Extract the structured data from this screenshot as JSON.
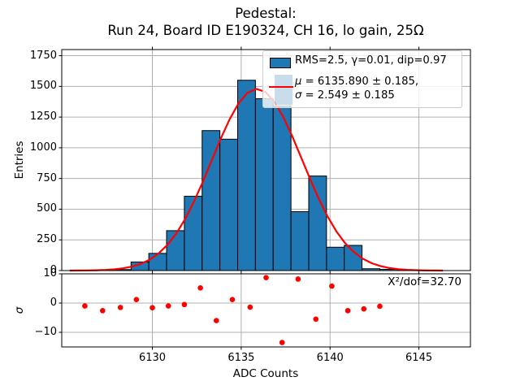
{
  "title": {
    "line1": "Pedestal:",
    "line2": "Run 24, Board ID E190324, CH 16, lo gain, 25Ω"
  },
  "legend": {
    "entry1_label": "RMS=2.5, γ=0.01, dip=0.97",
    "entry2_symbol1": "μ",
    "entry2_line1_rest": " = 6135.890 ± 0.185,",
    "entry2_symbol2": "σ",
    "entry2_line2_rest": " = 2.549 ± 0.185"
  },
  "annotation": "X²/dof=32.70",
  "colors": {
    "bar_fill": "#1f77b4",
    "bar_edge": "#000000",
    "fit_line": "#ff0000",
    "residual_dot": "#ff0000",
    "grid": "#b0b0b0",
    "frame": "#000000",
    "legend_fit_patch": "rgba(31,119,180,0.25)"
  },
  "chart_data": {
    "type": "bar",
    "subtype": "histogram-with-gaussian-fit-and-residuals",
    "xlabel": "ADC Counts",
    "xlim": [
      6124.9,
      6147.9
    ],
    "x_ticks": [
      6130,
      6135,
      6140,
      6145
    ],
    "main": {
      "type": "bar",
      "ylabel": "Entries",
      "ylim": [
        0,
        1800
      ],
      "y_ticks": [
        0,
        250,
        500,
        750,
        1000,
        1250,
        1500,
        1750
      ],
      "grid": true,
      "bin_width": 1,
      "bin_centers": [
        6128,
        6129,
        6130,
        6131,
        6132,
        6133,
        6134,
        6135,
        6136,
        6137,
        6138,
        6139,
        6140,
        6141,
        6142,
        6143,
        6144
      ],
      "bin_left_edges": [
        6127.8,
        6128.8,
        6129.8,
        6130.8,
        6131.8,
        6132.8,
        6133.8,
        6134.8,
        6135.8,
        6136.8,
        6137.8,
        6138.8,
        6139.8,
        6140.8,
        6141.8,
        6142.8,
        6143.8
      ],
      "values": [
        8,
        70,
        140,
        325,
        605,
        1140,
        1070,
        1550,
        1400,
        1340,
        480,
        770,
        190,
        205,
        15,
        10,
        5
      ],
      "fit_curve": {
        "shape": "gaussian",
        "amplitude": 1480,
        "mu": 6135.89,
        "sigma": 2.549,
        "sample_start": 6125.35,
        "sample_end": 6146.35,
        "sample_step": 0.5
      }
    },
    "residuals": {
      "type": "scatter",
      "ylabel": "σ",
      "ylim": [
        -15,
        10
      ],
      "y_ticks": [
        10,
        0,
        -10
      ],
      "grid": true,
      "x": [
        6126.2,
        6127.2,
        6128.2,
        6129.1,
        6130.0,
        6130.9,
        6131.8,
        6132.7,
        6133.6,
        6134.5,
        6135.5,
        6136.4,
        6137.3,
        6138.2,
        6139.2,
        6140.1,
        6141.0,
        6141.9,
        6142.8
      ],
      "y": [
        -1.0,
        -2.6,
        -1.5,
        1.2,
        -1.6,
        -1.0,
        -0.5,
        5.2,
        -6.0,
        1.2,
        -1.4,
        8.7,
        -13.5,
        8.2,
        -5.5,
        5.8,
        -2.6,
        -2.0,
        -1.1
      ]
    }
  }
}
